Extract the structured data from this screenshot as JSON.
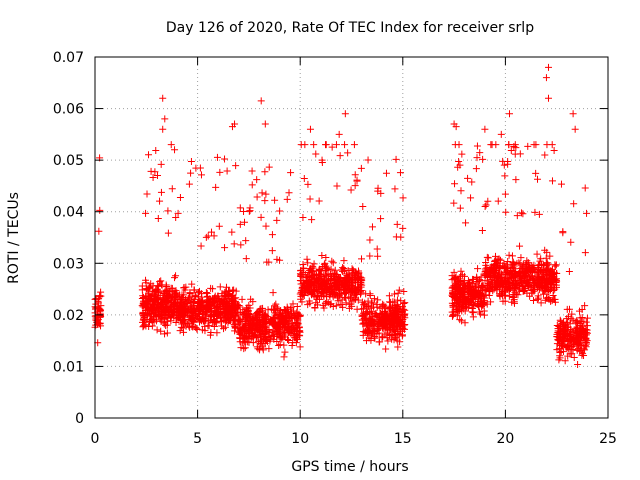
{
  "chart_data": {
    "type": "scatter",
    "title": "Day 126 of 2020, Rate Of TEC Index for receiver srlp",
    "xlabel": "GPS time / hours",
    "ylabel": "ROTI / TECUs",
    "xlim": [
      0,
      25
    ],
    "ylim": [
      0,
      0.07
    ],
    "x_ticks": [
      0,
      5,
      10,
      15,
      20,
      25
    ],
    "x_tick_labels": [
      "0",
      "5",
      "10",
      "15",
      "20",
      "25"
    ],
    "y_ticks": [
      0,
      0.01,
      0.02,
      0.03,
      0.04,
      0.05,
      0.06,
      0.07
    ],
    "y_tick_labels": [
      "0",
      "0.01",
      "0.02",
      "0.03",
      "0.04",
      "0.05",
      "0.06",
      "0.07"
    ],
    "grid": true,
    "marker": "+",
    "series": [
      {
        "name": "ROTI",
        "color": "#ff0000",
        "coverage_hours": [
          [
            0.0,
            0.3
          ],
          [
            2.3,
            15.1
          ],
          [
            17.4,
            24.0
          ]
        ],
        "typical_range": [
          0.005,
          0.045
        ],
        "outliers": [
          {
            "x": 3.3,
            "y": 0.062
          },
          {
            "x": 3.4,
            "y": 0.058
          },
          {
            "x": 3.3,
            "y": 0.056
          },
          {
            "x": 6.8,
            "y": 0.057
          },
          {
            "x": 6.7,
            "y": 0.0565
          },
          {
            "x": 8.1,
            "y": 0.0615
          },
          {
            "x": 8.3,
            "y": 0.057
          },
          {
            "x": 12.2,
            "y": 0.059
          },
          {
            "x": 11.9,
            "y": 0.055
          },
          {
            "x": 10.5,
            "y": 0.056
          },
          {
            "x": 17.5,
            "y": 0.057
          },
          {
            "x": 17.6,
            "y": 0.0565
          },
          {
            "x": 19.0,
            "y": 0.056
          },
          {
            "x": 19.8,
            "y": 0.055
          },
          {
            "x": 20.2,
            "y": 0.059
          },
          {
            "x": 22.1,
            "y": 0.068
          },
          {
            "x": 22.0,
            "y": 0.066
          },
          {
            "x": 22.1,
            "y": 0.062
          },
          {
            "x": 23.3,
            "y": 0.059
          },
          {
            "x": 23.4,
            "y": 0.056
          }
        ]
      }
    ]
  }
}
